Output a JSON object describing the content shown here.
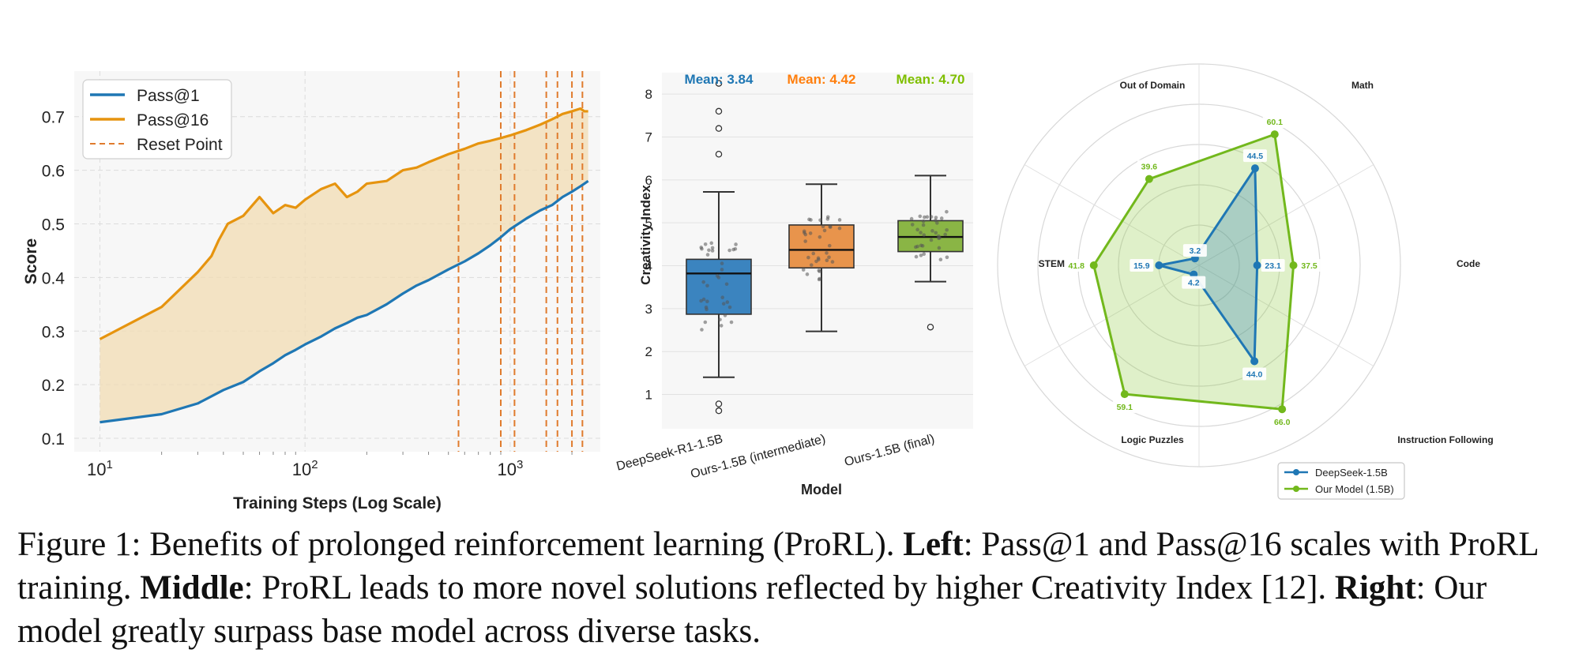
{
  "caption": {
    "figure_label": "Figure 1: Benefits of prolonged reinforcement learning (ProRL).",
    "left_label": "Left",
    "left_text": ": Pass@1 and Pass@16 scales with ProRL training.",
    "middle_label": "Middle",
    "middle_text": ": ProRL leads to more novel solutions reflected by higher Creativity Index [12].",
    "right_label": "Right",
    "right_text": ": Our model greatly surpass base model across diverse tasks."
  },
  "chart_data": [
    {
      "type": "line",
      "xlabel": "Training Steps (Log Scale)",
      "ylabel": "Score",
      "x_scale": "log",
      "xlim": [
        7.5,
        2750
      ],
      "ylim": [
        0.075,
        0.785
      ],
      "x_ticks": [
        {
          "value": 10,
          "label": "10^1"
        },
        {
          "value": 100,
          "label": "10^2"
        },
        {
          "value": 1000,
          "label": "10^3"
        }
      ],
      "y_ticks": [
        0.1,
        0.2,
        0.3,
        0.4,
        0.5,
        0.6,
        0.7
      ],
      "grid": true,
      "legend": {
        "position": "top-left",
        "entries": [
          "Pass@1",
          "Pass@16",
          "Reset Point"
        ]
      },
      "shaded_region_between_series": true,
      "series": [
        {
          "name": "Pass@1",
          "color": "#1f77b4",
          "x": [
            10,
            20,
            30,
            40,
            50,
            60,
            70,
            80,
            90,
            100,
            120,
            140,
            160,
            180,
            200,
            250,
            300,
            350,
            400,
            500,
            600,
            700,
            800,
            900,
            1000,
            1200,
            1400,
            1600,
            1800,
            2000,
            2200,
            2300,
            2400
          ],
          "y": [
            0.13,
            0.145,
            0.165,
            0.19,
            0.205,
            0.225,
            0.24,
            0.255,
            0.265,
            0.275,
            0.29,
            0.305,
            0.315,
            0.325,
            0.33,
            0.35,
            0.37,
            0.385,
            0.395,
            0.415,
            0.43,
            0.445,
            0.46,
            0.475,
            0.49,
            0.51,
            0.525,
            0.535,
            0.55,
            0.56,
            0.57,
            0.575,
            0.58
          ]
        },
        {
          "name": "Pass@16",
          "color": "#e6940f",
          "x": [
            10,
            20,
            30,
            35,
            38,
            42,
            50,
            60,
            70,
            80,
            90,
            100,
            120,
            140,
            160,
            180,
            200,
            250,
            300,
            350,
            400,
            500,
            600,
            700,
            800,
            900,
            1000,
            1200,
            1400,
            1600,
            1800,
            2000,
            2200,
            2300,
            2400
          ],
          "y": [
            0.285,
            0.345,
            0.41,
            0.44,
            0.47,
            0.5,
            0.515,
            0.55,
            0.52,
            0.535,
            0.53,
            0.545,
            0.565,
            0.575,
            0.55,
            0.56,
            0.575,
            0.58,
            0.6,
            0.605,
            0.615,
            0.63,
            0.64,
            0.65,
            0.655,
            0.66,
            0.665,
            0.675,
            0.685,
            0.695,
            0.705,
            0.71,
            0.715,
            0.71,
            0.71
          ]
        },
        {
          "name": "Reset Point",
          "color": "#e07b2d",
          "style": "dashed-vertical",
          "x": [
            560,
            900,
            1050,
            1500,
            1700,
            2000,
            2250
          ]
        }
      ]
    },
    {
      "type": "box",
      "xlabel": "Model",
      "ylabel": "Creativity Index",
      "ylim": [
        0.2,
        8.5
      ],
      "y_ticks": [
        1,
        2,
        3,
        4,
        5,
        6,
        7,
        8
      ],
      "grid": true,
      "categories": [
        "DeepSeek-R1-1.5B",
        "Ours-1.5B (intermediate)",
        "Ours-1.5B (final)"
      ],
      "means": [
        {
          "label": "Mean: 3.84",
          "value": 3.84,
          "color": "#1f77b4"
        },
        {
          "label": "Mean: 4.42",
          "value": 4.42,
          "color": "#ff7f0e"
        },
        {
          "label": "Mean: 4.70",
          "value": 4.7,
          "color": "#7fbf00"
        }
      ],
      "boxes": [
        {
          "color": "#3b84bf",
          "whisker_low": 1.4,
          "q1": 2.87,
          "median": 3.82,
          "q3": 4.15,
          "whisker_high": 5.72,
          "outliers": [
            8.25,
            7.6,
            7.2,
            6.6,
            0.78,
            0.62
          ]
        },
        {
          "color": "#e8944c",
          "whisker_low": 2.47,
          "q1": 3.95,
          "median": 4.37,
          "q3": 4.95,
          "whisker_high": 5.9,
          "outliers": []
        },
        {
          "color": "#8ab545",
          "whisker_low": 3.63,
          "q1": 4.33,
          "median": 4.67,
          "q3": 5.05,
          "whisker_high": 6.1,
          "outliers": [
            2.57
          ]
        }
      ]
    },
    {
      "type": "radar",
      "axes": [
        "Math",
        "Code",
        "Instruction Following",
        "Logic Puzzles",
        "STEM",
        "Out of Domain"
      ],
      "rmax": 80,
      "ring_values": [
        16,
        32,
        48,
        64,
        80
      ],
      "legend": {
        "position": "bottom",
        "entries": [
          "DeepSeek-1.5B",
          "Our Model (1.5B)"
        ]
      },
      "series": [
        {
          "name": "DeepSeek-1.5B",
          "color": "#1f77b4",
          "values": [
            44.5,
            23.1,
            44.0,
            4.2,
            15.9,
            3.2
          ],
          "labels": [
            "44.5",
            "23.1",
            "44.0",
            "4.2",
            "15.9",
            "3.2"
          ]
        },
        {
          "name": "Our Model (1.5B)",
          "color": "#72b81c",
          "values": [
            60.1,
            37.5,
            66.0,
            59.1,
            41.8,
            39.6
          ],
          "labels": [
            "60.1",
            "37.5",
            "66.0",
            "59.1",
            "41.8",
            "39.6"
          ]
        }
      ]
    }
  ]
}
